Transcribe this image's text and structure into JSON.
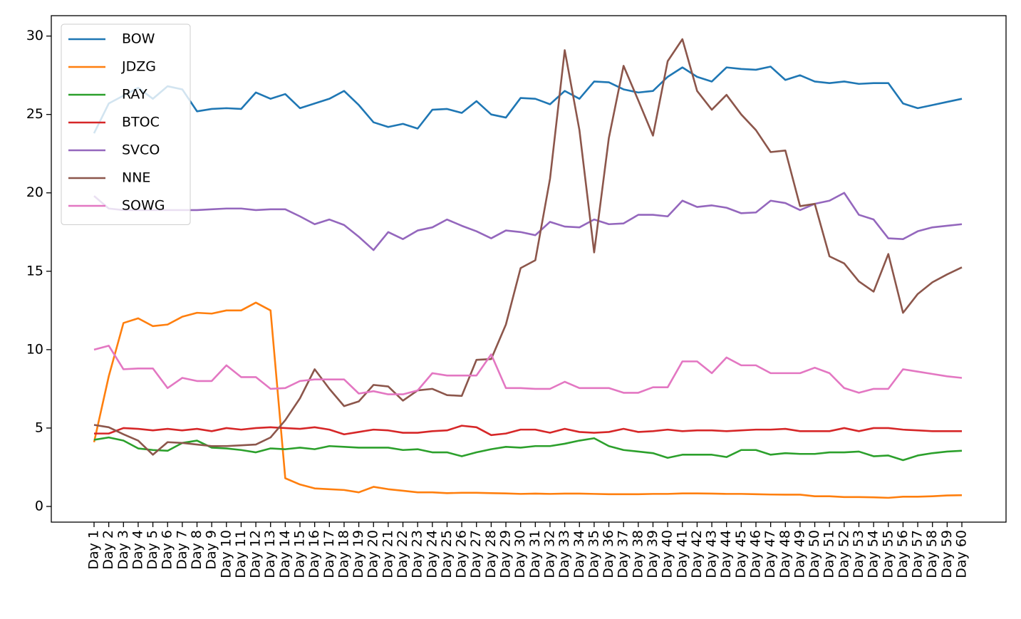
{
  "chart_data": {
    "type": "line",
    "categories": [
      "Day 1",
      "Day 2",
      "Day 3",
      "Day 4",
      "Day 5",
      "Day 6",
      "Day 7",
      "Day 8",
      "Day 9",
      "Day 10",
      "Day 11",
      "Day 12",
      "Day 13",
      "Day 14",
      "Day 15",
      "Day 16",
      "Day 17",
      "Day 18",
      "Day 19",
      "Day 20",
      "Day 21",
      "Day 22",
      "Day 23",
      "Day 24",
      "Day 25",
      "Day 26",
      "Day 27",
      "Day 28",
      "Day 29",
      "Day 30",
      "Day 31",
      "Day 32",
      "Day 33",
      "Day 34",
      "Day 35",
      "Day 36",
      "Day 37",
      "Day 38",
      "Day 39",
      "Day 40",
      "Day 41",
      "Day 42",
      "Day 43",
      "Day 44",
      "Day 45",
      "Day 46",
      "Day 47",
      "Day 48",
      "Day 49",
      "Day 50",
      "Day 51",
      "Day 52",
      "Day 53",
      "Day 54",
      "Day 55",
      "Day 56",
      "Day 57",
      "Day 58",
      "Day 59",
      "Day 60"
    ],
    "series": [
      {
        "name": "BOW",
        "color": "#1f77b4",
        "values": [
          23.8,
          25.7,
          26.2,
          26.7,
          26.0,
          26.8,
          26.6,
          25.2,
          25.35,
          25.4,
          25.35,
          26.4,
          26.0,
          26.3,
          25.4,
          25.7,
          26.0,
          26.5,
          25.6,
          24.5,
          24.2,
          24.4,
          24.1,
          25.3,
          25.35,
          25.1,
          25.85,
          25.0,
          24.8,
          26.05,
          26.0,
          25.65,
          26.5,
          26.0,
          27.1,
          27.05,
          26.6,
          26.4,
          26.5,
          27.4,
          28.0,
          27.4,
          27.1,
          28.0,
          27.9,
          27.85,
          28.05,
          27.2,
          27.5,
          27.1,
          27.0,
          27.1,
          26.95,
          27.0,
          27.0,
          25.7,
          25.4,
          25.6,
          25.8,
          26.0
        ]
      },
      {
        "name": "JDZG",
        "color": "#ff7f0e",
        "values": [
          4.1,
          8.3,
          11.7,
          12.0,
          11.5,
          11.6,
          12.1,
          12.35,
          12.3,
          12.5,
          12.5,
          13.0,
          12.5,
          1.8,
          1.4,
          1.15,
          1.1,
          1.05,
          0.9,
          1.25,
          1.1,
          1.0,
          0.9,
          0.9,
          0.85,
          0.87,
          0.87,
          0.85,
          0.83,
          0.8,
          0.82,
          0.8,
          0.82,
          0.82,
          0.8,
          0.78,
          0.78,
          0.78,
          0.8,
          0.8,
          0.83,
          0.83,
          0.82,
          0.8,
          0.8,
          0.78,
          0.76,
          0.75,
          0.75,
          0.65,
          0.65,
          0.6,
          0.6,
          0.58,
          0.55,
          0.62,
          0.62,
          0.65,
          0.7,
          0.72
        ]
      },
      {
        "name": "RAY",
        "color": "#2ca02c",
        "values": [
          4.25,
          4.4,
          4.2,
          3.7,
          3.6,
          3.55,
          4.05,
          4.2,
          3.75,
          3.7,
          3.6,
          3.45,
          3.7,
          3.65,
          3.75,
          3.65,
          3.85,
          3.8,
          3.75,
          3.75,
          3.75,
          3.6,
          3.65,
          3.45,
          3.45,
          3.2,
          3.45,
          3.65,
          3.8,
          3.75,
          3.85,
          3.85,
          4.0,
          4.2,
          4.35,
          3.85,
          3.6,
          3.5,
          3.4,
          3.1,
          3.3,
          3.3,
          3.3,
          3.15,
          3.6,
          3.6,
          3.3,
          3.4,
          3.35,
          3.35,
          3.45,
          3.45,
          3.5,
          3.2,
          3.25,
          2.95,
          3.25,
          3.4,
          3.5,
          3.55
        ]
      },
      {
        "name": "BTOC",
        "color": "#d62728",
        "values": [
          4.65,
          4.65,
          5.0,
          4.95,
          4.85,
          4.95,
          4.85,
          4.95,
          4.8,
          5.0,
          4.9,
          5.0,
          5.05,
          5.0,
          4.95,
          5.05,
          4.9,
          4.6,
          4.75,
          4.9,
          4.85,
          4.7,
          4.7,
          4.8,
          4.85,
          5.15,
          5.05,
          4.55,
          4.65,
          4.9,
          4.9,
          4.7,
          4.95,
          4.75,
          4.7,
          4.75,
          4.95,
          4.75,
          4.8,
          4.9,
          4.8,
          4.85,
          4.85,
          4.8,
          4.85,
          4.9,
          4.9,
          4.95,
          4.8,
          4.8,
          4.8,
          5.0,
          4.8,
          5.0,
          5.0,
          4.9,
          4.85,
          4.8,
          4.8,
          4.8
        ]
      },
      {
        "name": "SVCO",
        "color": "#9467bd",
        "values": [
          19.8,
          19.0,
          18.9,
          18.9,
          18.9,
          18.9,
          18.9,
          18.9,
          18.95,
          19.0,
          19.0,
          18.9,
          18.95,
          18.95,
          18.5,
          18.0,
          18.3,
          17.95,
          17.2,
          16.35,
          17.5,
          17.05,
          17.6,
          17.8,
          18.3,
          17.9,
          17.55,
          17.1,
          17.6,
          17.5,
          17.3,
          18.15,
          17.85,
          17.8,
          18.3,
          18.0,
          18.05,
          18.6,
          18.6,
          18.5,
          19.5,
          19.1,
          19.2,
          19.05,
          18.7,
          18.75,
          19.5,
          19.35,
          18.9,
          19.3,
          19.5,
          20.0,
          18.6,
          18.3,
          17.1,
          17.05,
          17.55,
          17.8,
          17.9,
          18.0
        ]
      },
      {
        "name": "NNE",
        "color": "#8c564b",
        "values": [
          5.2,
          5.05,
          4.6,
          4.2,
          3.3,
          4.1,
          4.05,
          3.95,
          3.85,
          3.85,
          3.9,
          3.95,
          4.4,
          5.5,
          6.9,
          8.75,
          7.5,
          6.4,
          6.7,
          7.75,
          7.65,
          6.75,
          7.4,
          7.5,
          7.1,
          7.05,
          9.35,
          9.4,
          11.6,
          15.2,
          15.7,
          20.9,
          29.1,
          24.0,
          16.2,
          23.5,
          28.1,
          25.9,
          23.65,
          28.4,
          29.8,
          26.5,
          25.3,
          26.25,
          25.0,
          24.0,
          22.6,
          22.7,
          19.15,
          19.3,
          15.95,
          15.5,
          14.35,
          13.7,
          16.1,
          12.35,
          13.55,
          14.3,
          14.8,
          15.25
        ]
      },
      {
        "name": "SOWG",
        "color": "#e377c2",
        "values": [
          10.0,
          10.25,
          8.75,
          8.8,
          8.8,
          7.55,
          8.2,
          8.0,
          8.0,
          9.0,
          8.25,
          8.25,
          7.5,
          7.55,
          8.0,
          8.1,
          8.1,
          8.1,
          7.2,
          7.35,
          7.15,
          7.15,
          7.4,
          8.5,
          8.35,
          8.35,
          8.35,
          9.7,
          7.55,
          7.55,
          7.5,
          7.5,
          7.95,
          7.55,
          7.55,
          7.55,
          7.25,
          7.25,
          7.6,
          7.6,
          9.25,
          9.25,
          8.5,
          9.5,
          9.0,
          9.0,
          8.5,
          8.5,
          8.5,
          8.85,
          8.5,
          7.55,
          7.25,
          7.5,
          7.5,
          8.75,
          8.6,
          8.45,
          8.3,
          8.2
        ]
      }
    ],
    "ylim": [
      -1.0,
      31.3
    ],
    "yticks": [
      0,
      5,
      10,
      15,
      20,
      25,
      30
    ],
    "legend": "upper left"
  }
}
